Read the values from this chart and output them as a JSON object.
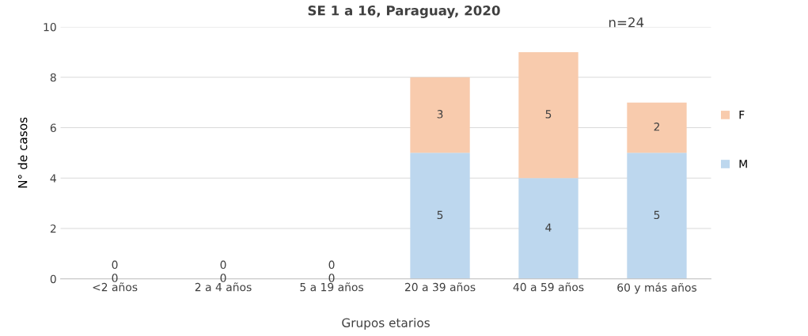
{
  "chart_data": {
    "type": "bar",
    "title": "SE 1 a 16, Paraguay, 2020",
    "xlabel": "Grupos etarios",
    "ylabel": "N° de casos",
    "annotations": [
      "n=24"
    ],
    "categories": [
      "<2 años",
      "2 a 4 años",
      "5 a 19 años",
      "20 a 39 años",
      "40 a 59 años",
      "60 y más años"
    ],
    "stacked": true,
    "series": [
      {
        "name": "M",
        "color": "#bdd7ee",
        "values": [
          0,
          0,
          0,
          5,
          4,
          5
        ]
      },
      {
        "name": "F",
        "color": "#f8cbad",
        "values": [
          0,
          0,
          0,
          3,
          5,
          2
        ]
      }
    ],
    "ylim": [
      0,
      10
    ],
    "yticks": [
      0,
      2,
      4,
      6,
      8,
      10
    ],
    "grid": "y",
    "legend": "right",
    "data_labels": true
  }
}
